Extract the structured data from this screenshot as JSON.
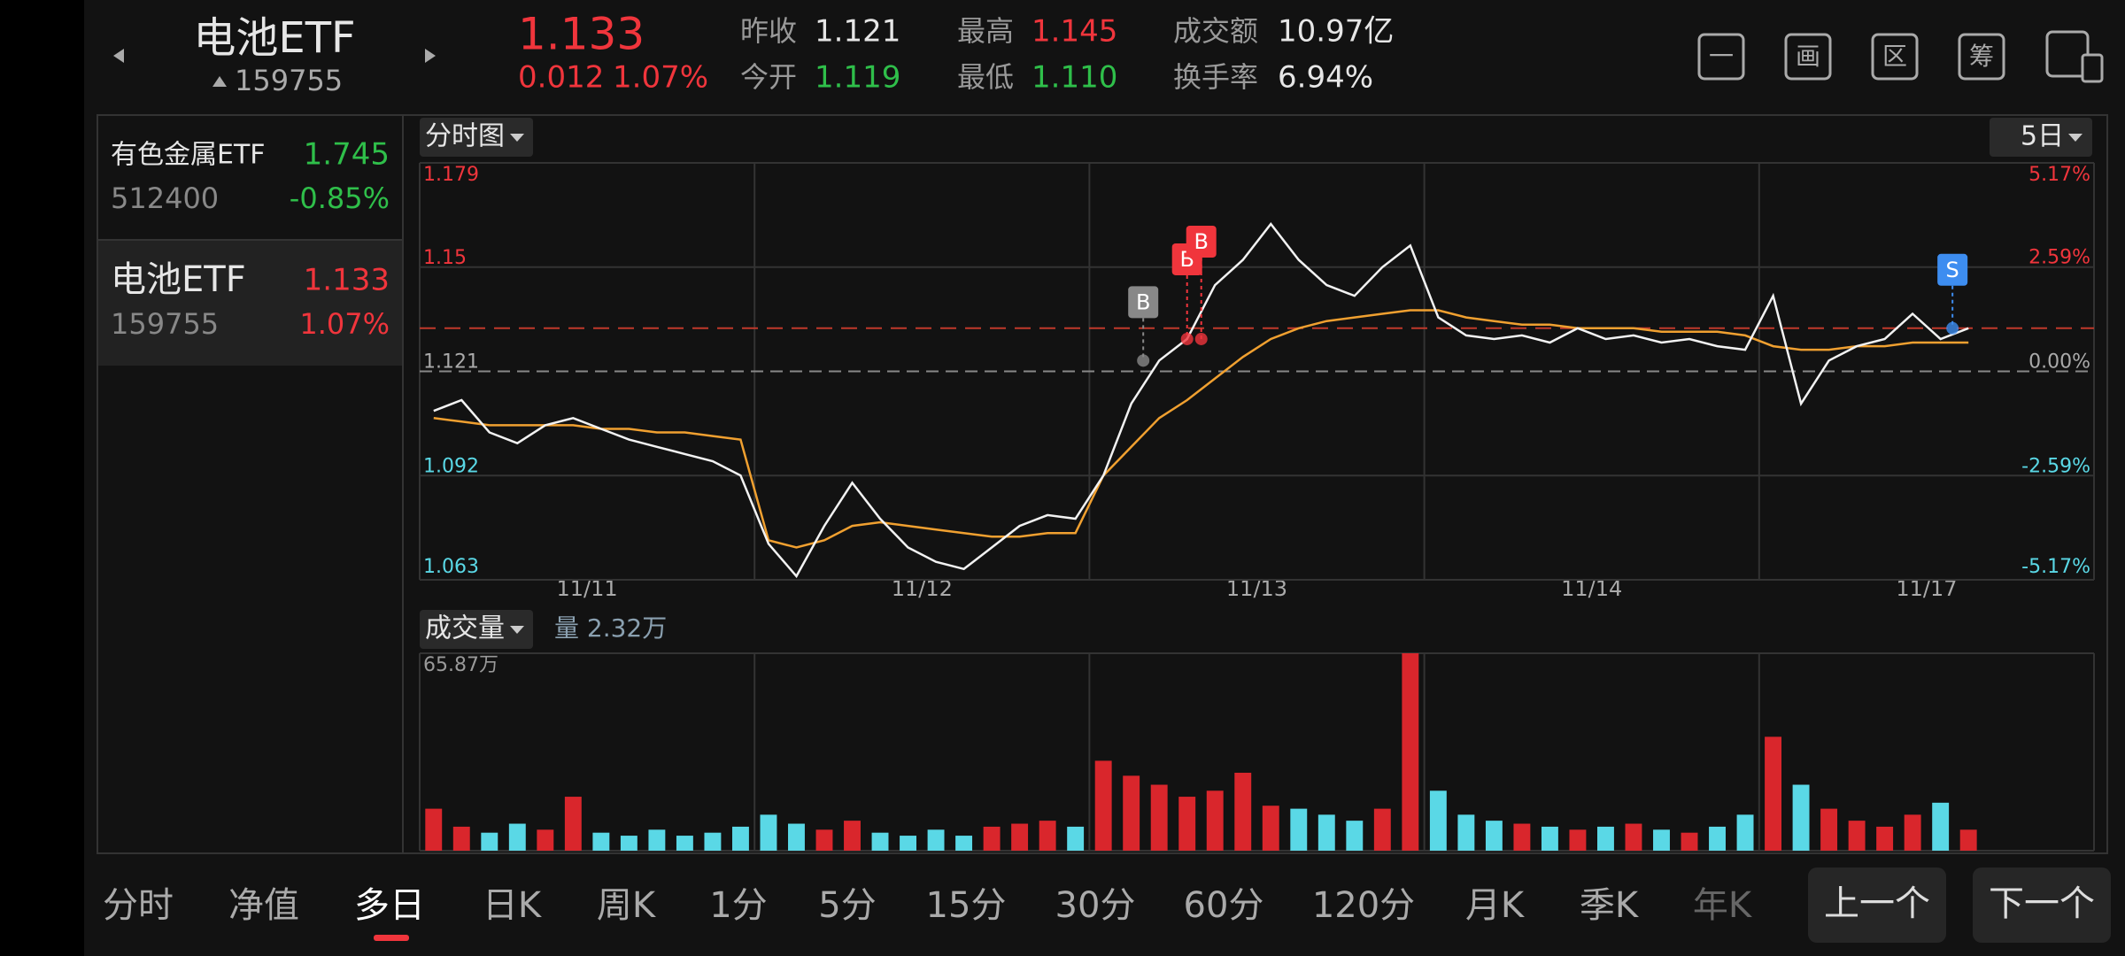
{
  "header": {
    "name": "电池ETF",
    "code": "159755",
    "price": "1.133",
    "change": "0.012",
    "change_pct": "1.07%",
    "stats": [
      {
        "label": "昨收",
        "value": "1.121",
        "tone": "neutral"
      },
      {
        "label": "今开",
        "value": "1.119",
        "tone": "down"
      },
      {
        "label": "最高",
        "value": "1.145",
        "tone": "up"
      },
      {
        "label": "最低",
        "value": "1.110",
        "tone": "down"
      },
      {
        "label": "成交额",
        "value": "10.97亿",
        "tone": "neutral"
      },
      {
        "label": "换手率",
        "value": "6.94%",
        "tone": "neutral"
      }
    ],
    "icons": [
      "一",
      "画",
      "区",
      "筹"
    ]
  },
  "watchlist": [
    {
      "name": "有色金属ETF",
      "price": "1.745",
      "code": "512400",
      "change": "-0.85%",
      "tone": "down"
    },
    {
      "name": "电池ETF",
      "price": "1.133",
      "code": "159755",
      "change": "1.07%",
      "tone": "up"
    }
  ],
  "chart": {
    "type": "line",
    "tab": "分时图",
    "period": "5日",
    "ylim": [
      1.063,
      1.179
    ],
    "yticks": [
      1.179,
      1.15,
      1.121,
      1.092,
      1.063
    ],
    "y2lim": [
      -5.17,
      5.17
    ],
    "y2ticks": [
      {
        "value": 5.17,
        "label": "5.17%"
      },
      {
        "value": 2.59,
        "label": "2.59%"
      },
      {
        "value": 0,
        "label": "0.00%"
      },
      {
        "value": -2.59,
        "label": "-2.59%"
      },
      {
        "value": -5.17,
        "label": "-5.17%"
      }
    ],
    "prev_close": 1.121,
    "current": 1.133,
    "dates": [
      "11/11",
      "11/12",
      "11/13",
      "11/14",
      "11/17"
    ],
    "price": [
      1.11,
      1.113,
      1.104,
      1.101,
      1.106,
      1.108,
      1.105,
      1.102,
      1.1,
      1.098,
      1.096,
      1.092,
      1.073,
      1.064,
      1.078,
      1.09,
      1.08,
      1.072,
      1.068,
      1.066,
      1.072,
      1.078,
      1.081,
      1.08,
      1.092,
      1.112,
      1.124,
      1.13,
      1.145,
      1.152,
      1.162,
      1.152,
      1.145,
      1.142,
      1.15,
      1.156,
      1.136,
      1.131,
      1.13,
      1.131,
      1.129,
      1.133,
      1.13,
      1.131,
      1.129,
      1.13,
      1.128,
      1.127,
      1.142,
      1.112,
      1.124,
      1.128,
      1.13,
      1.137,
      1.13,
      1.133
    ],
    "avg": [
      1.108,
      1.107,
      1.106,
      1.106,
      1.106,
      1.106,
      1.105,
      1.105,
      1.104,
      1.104,
      1.103,
      1.102,
      1.074,
      1.072,
      1.074,
      1.078,
      1.079,
      1.078,
      1.077,
      1.076,
      1.075,
      1.075,
      1.076,
      1.076,
      1.092,
      1.1,
      1.108,
      1.113,
      1.119,
      1.125,
      1.13,
      1.133,
      1.135,
      1.136,
      1.137,
      1.138,
      1.138,
      1.136,
      1.135,
      1.134,
      1.134,
      1.133,
      1.133,
      1.133,
      1.132,
      1.132,
      1.132,
      1.131,
      1.128,
      1.127,
      1.127,
      1.128,
      1.128,
      1.129,
      1.129,
      1.129
    ],
    "markers": [
      "B",
      "B",
      "B",
      "S"
    ]
  },
  "volume": {
    "type": "bar",
    "tab": "成交量",
    "annotation": "量 2.32万",
    "ylim": [
      0,
      65.87
    ],
    "yticks": [
      {
        "value": 65.87,
        "label": "65.87万"
      }
    ],
    "values": [
      14,
      8,
      6,
      9,
      7,
      18,
      6,
      5,
      7,
      5,
      6,
      8,
      12,
      9,
      7,
      10,
      6,
      5,
      7,
      5,
      8,
      9,
      10,
      8,
      30,
      25,
      22,
      18,
      20,
      26,
      15,
      14,
      12,
      10,
      14,
      65.87,
      20,
      12,
      10,
      9,
      8,
      7,
      8,
      9,
      7,
      6,
      8,
      12,
      38,
      22,
      14,
      10,
      8,
      12,
      16,
      7
    ]
  },
  "nav": {
    "tabs": [
      "分时",
      "净值",
      "多日",
      "日K",
      "周K",
      "1分",
      "5分",
      "15分",
      "30分",
      "60分",
      "120分",
      "月K",
      "季K",
      "年K"
    ],
    "active": 2,
    "buttons": [
      "上一个",
      "下一个"
    ]
  }
}
